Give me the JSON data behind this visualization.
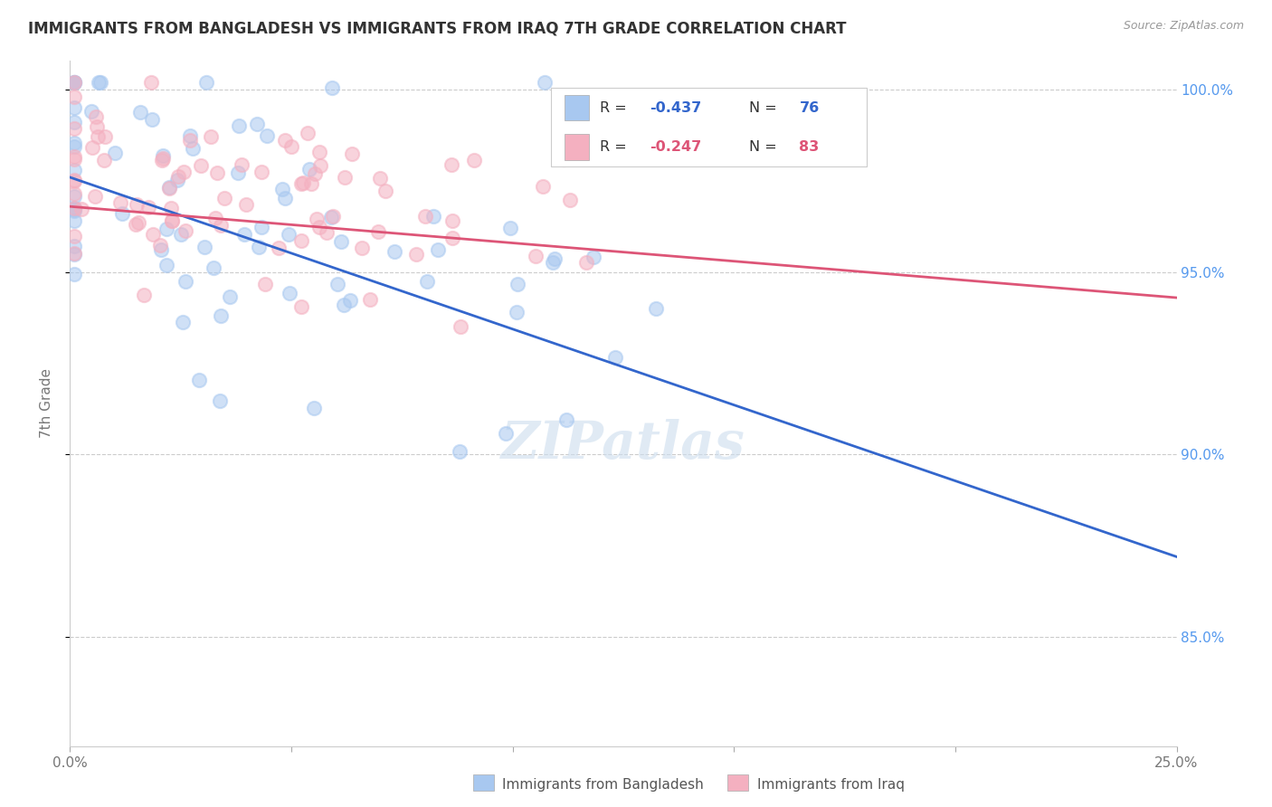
{
  "title": "IMMIGRANTS FROM BANGLADESH VS IMMIGRANTS FROM IRAQ 7TH GRADE CORRELATION CHART",
  "source": "Source: ZipAtlas.com",
  "ylabel": "7th Grade",
  "xlim": [
    0.0,
    0.25
  ],
  "ylim": [
    0.82,
    1.008
  ],
  "xticks": [
    0.0,
    0.05,
    0.1,
    0.15,
    0.2,
    0.25
  ],
  "xticklabels": [
    "0.0%",
    "",
    "",
    "",
    "",
    "25.0%"
  ],
  "yticks": [
    0.85,
    0.9,
    0.95,
    1.0
  ],
  "yticklabels": [
    "85.0%",
    "90.0%",
    "95.0%",
    "100.0%"
  ],
  "legend_blue_label": "Immigrants from Bangladesh",
  "legend_pink_label": "Immigrants from Iraq",
  "blue_R": "-0.437",
  "blue_N": "76",
  "pink_R": "-0.247",
  "pink_N": "83",
  "blue_marker_color": "#A8C8F0",
  "pink_marker_color": "#F4B0C0",
  "blue_line_color": "#3366CC",
  "pink_line_color": "#DD5577",
  "blue_trend_x": [
    0.0,
    0.25
  ],
  "blue_trend_y": [
    0.976,
    0.872
  ],
  "pink_trend_x": [
    0.0,
    0.25
  ],
  "pink_trend_y": [
    0.968,
    0.943
  ],
  "watermark": "ZIPatlas",
  "background_color": "#ffffff",
  "grid_color": "#cccccc",
  "tick_color": "#aaaaaa",
  "right_axis_color": "#5599EE"
}
